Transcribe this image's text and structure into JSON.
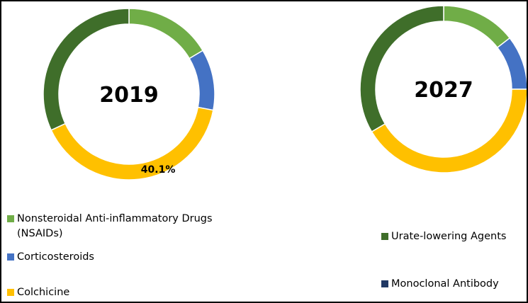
{
  "chart_data": [
    {
      "type": "pie",
      "title": "2019",
      "series": [
        {
          "name": "Nonsteroidal Anti-inflammatory Drugs (NSAIDs)",
          "value": 16.5
        },
        {
          "name": "Corticosteroids",
          "value": 11.5
        },
        {
          "name": "Colchicine",
          "value": 40.1
        },
        {
          "name": "Urate-lowering Agents",
          "value": 31.9
        },
        {
          "name": "Monoclonal Antibody",
          "value": 0.0
        }
      ],
      "data_labels": {
        "Colchicine": "40.1%"
      }
    },
    {
      "type": "pie",
      "title": "2027",
      "series": [
        {
          "name": "Nonsteroidal Anti-inflammatory Drugs (NSAIDs)",
          "value": 14.5
        },
        {
          "name": "Corticosteroids",
          "value": 10.5
        },
        {
          "name": "Colchicine",
          "value": 41.5
        },
        {
          "name": "Urate-lowering Agents",
          "value": 33.5
        },
        {
          "name": "Monoclonal Antibody",
          "value": 0.0
        }
      ],
      "data_labels": {}
    }
  ],
  "legend": [
    {
      "label_line1": "Nonsteroidal Anti-inflammatory Drugs",
      "label_line2": "(NSAIDs)",
      "color": "#70AD47"
    },
    {
      "label_line1": "Corticosteroids",
      "label_line2": "",
      "color": "#4472C4"
    },
    {
      "label_line1": "Colchicine",
      "label_line2": "",
      "color": "#FFC000"
    },
    {
      "label_line1": "Urate-lowering Agents",
      "label_line2": "",
      "color": "#3F6E2A"
    },
    {
      "label_line1": "Monoclonal Antibody",
      "label_line2": "",
      "color": "#203864"
    }
  ],
  "colors": {
    "Nonsteroidal Anti-inflammatory Drugs (NSAIDs)": "#70AD47",
    "Corticosteroids": "#4472C4",
    "Colchicine": "#FFC000",
    "Urate-lowering Agents": "#3F6E2A",
    "Monoclonal Antibody": "#203864"
  }
}
